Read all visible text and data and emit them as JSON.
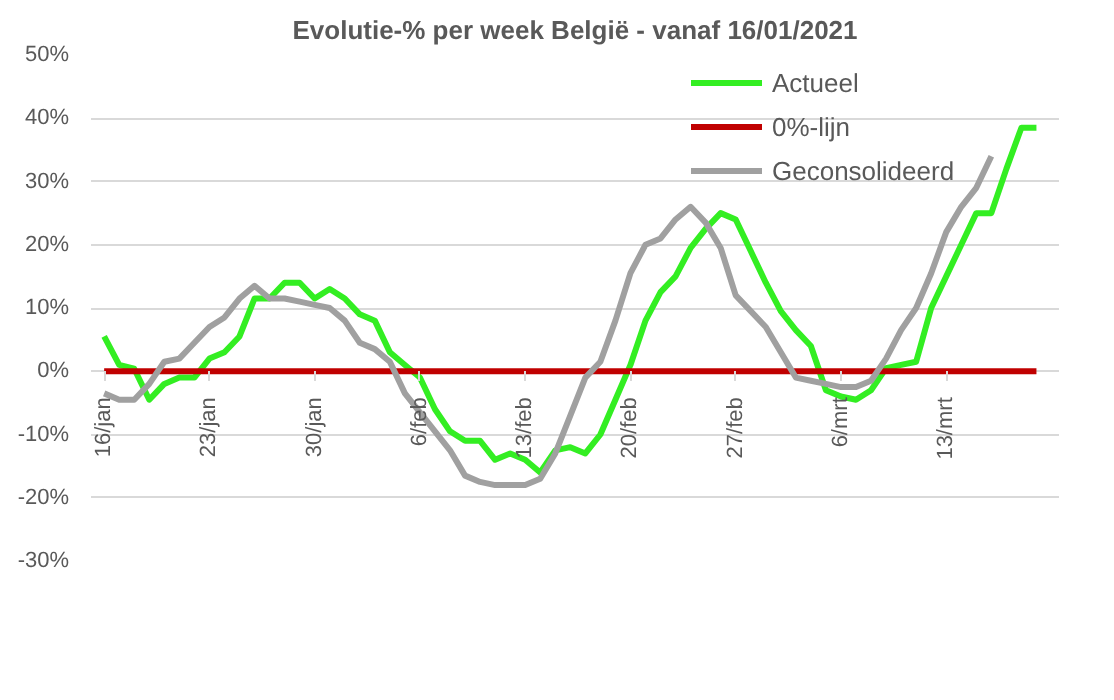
{
  "chart_data": {
    "type": "line",
    "title": "Evolutie-% per week België - vanaf 16/01/2021",
    "x": [
      "2021-01-16",
      "2021-01-17",
      "2021-01-18",
      "2021-01-19",
      "2021-01-20",
      "2021-01-21",
      "2021-01-22",
      "2021-01-23",
      "2021-01-24",
      "2021-01-25",
      "2021-01-26",
      "2021-01-27",
      "2021-01-28",
      "2021-01-29",
      "2021-01-30",
      "2021-01-31",
      "2021-02-01",
      "2021-02-02",
      "2021-02-03",
      "2021-02-04",
      "2021-02-05",
      "2021-02-06",
      "2021-02-07",
      "2021-02-08",
      "2021-02-09",
      "2021-02-10",
      "2021-02-11",
      "2021-02-12",
      "2021-02-13",
      "2021-02-14",
      "2021-02-15",
      "2021-02-16",
      "2021-02-17",
      "2021-02-18",
      "2021-02-19",
      "2021-02-20",
      "2021-02-21",
      "2021-02-22",
      "2021-02-23",
      "2021-02-24",
      "2021-02-25",
      "2021-02-26",
      "2021-02-27",
      "2021-02-28",
      "2021-03-01",
      "2021-03-02",
      "2021-03-03",
      "2021-03-04",
      "2021-03-05",
      "2021-03-06",
      "2021-03-07",
      "2021-03-08",
      "2021-03-09",
      "2021-03-10",
      "2021-03-11",
      "2021-03-12",
      "2021-03-13",
      "2021-03-14",
      "2021-03-15",
      "2021-03-16",
      "2021-03-17",
      "2021-03-18",
      "2021-03-19"
    ],
    "series": [
      {
        "name": "Actueel",
        "color": "#33ee22",
        "values": [
          5.5,
          1,
          0.4,
          -4.5,
          -2,
          -1,
          -1,
          2,
          3,
          5.5,
          11.5,
          11.5,
          14,
          14,
          11.5,
          13,
          11.5,
          9,
          8,
          3,
          1,
          -1,
          -6,
          -9.5,
          -11,
          -11,
          -14,
          -13,
          -14,
          -16,
          -12.5,
          -12,
          -13,
          -10,
          -4.5,
          1,
          8,
          12.5,
          15,
          19.5,
          22.5,
          25,
          24,
          19,
          14,
          9.5,
          6.5,
          4,
          -3,
          -4,
          -4.5,
          -3,
          0.5,
          1,
          1.5,
          10,
          15,
          20,
          25,
          25,
          32,
          38.5,
          38.5
        ]
      },
      {
        "name": "0%-lijn",
        "color": "#c00000",
        "x": [
          "2021-01-16",
          "2021-03-19"
        ],
        "values": [
          0,
          0
        ]
      },
      {
        "name": "Geconsolideerd",
        "color": "#a0a0a0",
        "values": [
          -3.5,
          -4.5,
          -4.5,
          -2,
          1.5,
          2,
          4.5,
          7,
          8.5,
          11.5,
          13.5,
          11.5,
          11.5,
          11,
          10.5,
          10,
          8,
          4.5,
          3.5,
          1.5,
          -3.5,
          -6.5,
          -9.5,
          -12.5,
          -16.5,
          -17.5,
          -18,
          -18,
          -18,
          -17,
          -13,
          -7,
          -1,
          1.5,
          8,
          15.5,
          20,
          21,
          24,
          26,
          23.5,
          19.5,
          12,
          9.5,
          7,
          3,
          -1,
          -1.5,
          -2,
          -2.5,
          -2.5,
          -1.5,
          2,
          6.5,
          10,
          15.5,
          22,
          26,
          29,
          34,
          null,
          null,
          null
        ]
      }
    ],
    "xlim": [
      "2021-01-15T03:00",
      "2021-03-20T12:00"
    ],
    "xticks": [
      {
        "value": "2021-01-16",
        "label": "16/jan"
      },
      {
        "value": "2021-01-23",
        "label": "23/jan"
      },
      {
        "value": "2021-01-30",
        "label": "30/jan"
      },
      {
        "value": "2021-02-06",
        "label": "6/feb"
      },
      {
        "value": "2021-02-13",
        "label": "13/feb"
      },
      {
        "value": "2021-02-20",
        "label": "20/feb"
      },
      {
        "value": "2021-02-27",
        "label": "27/feb"
      },
      {
        "value": "2021-03-06",
        "label": "6/mrt"
      },
      {
        "value": "2021-03-13",
        "label": "13/mrt"
      }
    ],
    "ylim": [
      -30,
      50
    ],
    "yticks": [
      {
        "value": -30,
        "label": "-30%"
      },
      {
        "value": -20,
        "label": "-20%"
      },
      {
        "value": -10,
        "label": "-10%"
      },
      {
        "value": 0,
        "label": "0%"
      },
      {
        "value": 10,
        "label": "10%"
      },
      {
        "value": 20,
        "label": "20%"
      },
      {
        "value": 30,
        "label": "30%"
      },
      {
        "value": 40,
        "label": "40%"
      },
      {
        "value": 50,
        "label": "50%"
      }
    ],
    "grid": "y",
    "legend": "top right",
    "marker": "none",
    "line_style": "solid"
  }
}
